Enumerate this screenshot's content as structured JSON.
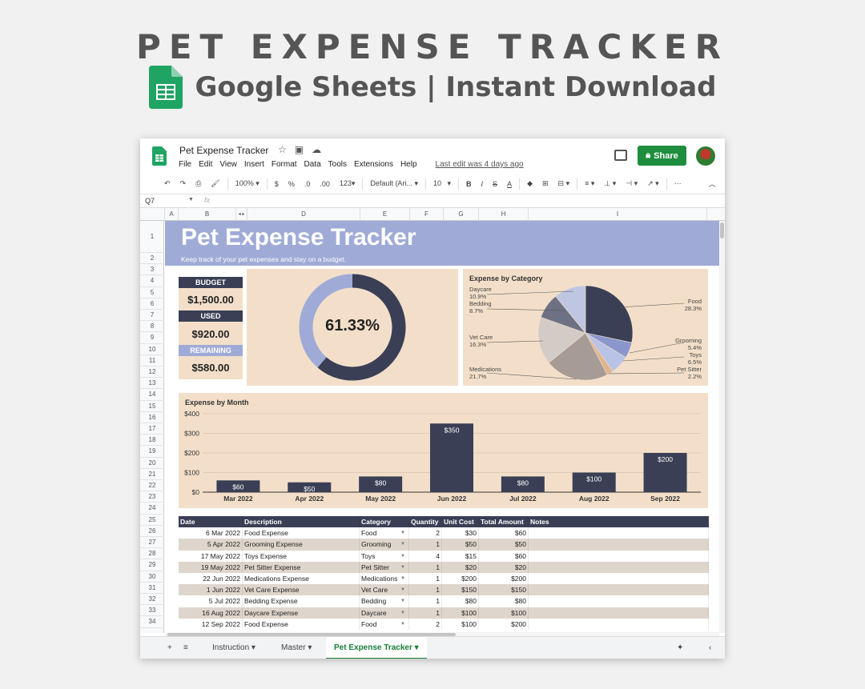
{
  "promo": {
    "title": "PET EXPENSE TRACKER",
    "subtitle": "Google Sheets | Instant Download",
    "logo_icon": "google-sheets-icon"
  },
  "window": {
    "doc_title": "Pet Expense Tracker",
    "menu": [
      "File",
      "Edit",
      "View",
      "Insert",
      "Format",
      "Data",
      "Tools",
      "Extensions",
      "Help"
    ],
    "last_edit": "Last edit was 4 days ago",
    "share_label": "Share",
    "name_box": "Q7",
    "fx": "fx"
  },
  "toolbar": {
    "zoom": "100%",
    "currency": "$",
    "percent": "%",
    "dec_less": ".0",
    "dec_more": ".00",
    "format_more": "123",
    "font": "Default (Ari...",
    "font_size": "10",
    "bold": "B",
    "italic": "I",
    "strike": "S",
    "text_color": "A",
    "more": "⋯"
  },
  "columns": [
    "A",
    "B",
    "◂ ▸",
    "D",
    "E",
    "F",
    "G",
    "H",
    "I"
  ],
  "rows": [
    "1",
    "2",
    "3",
    "4",
    "5",
    "6",
    "7",
    "8",
    "9",
    "10",
    "11",
    "12",
    "13",
    "14",
    "15",
    "16",
    "17",
    "18",
    "19",
    "20",
    "21",
    "22",
    "23",
    "24",
    "25",
    "26",
    "27",
    "28",
    "29",
    "30",
    "31",
    "32",
    "33",
    "34"
  ],
  "banner": {
    "title": "Pet Expense Tracker",
    "subtitle": "Keep track of your pet expenses and stay on a budget."
  },
  "budget": {
    "budget_label": "BUDGET",
    "budget_value": "$1,500.00",
    "used_label": "USED",
    "used_value": "$920.00",
    "remaining_label": "REMAINING",
    "remaining_value": "$580.00"
  },
  "donut": {
    "percent_label": "61.33%",
    "fraction": 0.6133
  },
  "colors": {
    "navy": "#3a3f55",
    "periwinkle": "#9fabd6",
    "panel": "#f3dfc9",
    "alt_row": "#ded6cc",
    "share_green": "#1e8e3e"
  },
  "chart_data": [
    {
      "type": "pie",
      "title": "Expense by Category",
      "slices": [
        {
          "name": "Food",
          "value": 28.3,
          "label": "28.3%",
          "color": "#3a3f55"
        },
        {
          "name": "Grooming",
          "value": 5.4,
          "label": "5.4%",
          "color": "#8a96cc"
        },
        {
          "name": "Toys",
          "value": 6.5,
          "label": "6.5%",
          "color": "#b9c3e6"
        },
        {
          "name": "Pet Sitter",
          "value": 2.2,
          "label": "2.2%",
          "color": "#e0b48e"
        },
        {
          "name": "Medications",
          "value": 21.7,
          "label": "21.7%",
          "color": "#a79b95"
        },
        {
          "name": "Vet Care",
          "value": 16.3,
          "label": "16.3%",
          "color": "#d3ccc6"
        },
        {
          "name": "Bedding",
          "value": 8.7,
          "label": "8.7%",
          "color": "#6d7183"
        },
        {
          "name": "Daycare",
          "value": 10.9,
          "label": "10.9%",
          "color": "#bfc6e2"
        }
      ]
    },
    {
      "type": "bar",
      "title": "Expense by Month",
      "categories": [
        "Mar 2022",
        "Apr 2022",
        "May 2022",
        "Jun 2022",
        "Jul 2022",
        "Aug 2022",
        "Sep 2022"
      ],
      "values": [
        60,
        50,
        80,
        350,
        80,
        100,
        200
      ],
      "value_labels": [
        "$60",
        "$50",
        "$80",
        "$350",
        "$80",
        "$100",
        "$200"
      ],
      "y_ticks": [
        "$0",
        "$100",
        "$200",
        "$300",
        "$400"
      ],
      "ylim": [
        0,
        400
      ],
      "grid": true
    }
  ],
  "table": {
    "headers": [
      "Date",
      "Description",
      "Category",
      "Quantity",
      "Unit Cost",
      "Total Amount",
      "Notes"
    ],
    "rows": [
      [
        "6 Mar 2022",
        "Food Expense",
        "Food",
        "2",
        "$30",
        "$60"
      ],
      [
        "5 Apr 2022",
        "Grooming Expense",
        "Grooming",
        "1",
        "$50",
        "$50"
      ],
      [
        "17 May 2022",
        "Toys Expense",
        "Toys",
        "4",
        "$15",
        "$60"
      ],
      [
        "19 May 2022",
        "Pet Sitter Expense",
        "Pet Sitter",
        "1",
        "$20",
        "$20"
      ],
      [
        "22 Jun 2022",
        "Medications Expense",
        "Medications",
        "1",
        "$200",
        "$200"
      ],
      [
        "1 Jun 2022",
        "Vet Care Expense",
        "Vet Care",
        "1",
        "$150",
        "$150"
      ],
      [
        "5 Jul 2022",
        "Bedding Expense",
        "Bedding",
        "1",
        "$80",
        "$80"
      ],
      [
        "16 Aug 2022",
        "Daycare Expense",
        "Daycare",
        "1",
        "$100",
        "$100"
      ],
      [
        "12 Sep 2022",
        "Food Expense",
        "Food",
        "2",
        "$100",
        "$200"
      ]
    ]
  },
  "tabs": {
    "add": "+",
    "list": "≡",
    "items": [
      "Instruction",
      "Master",
      "Pet Expense Tracker"
    ],
    "active": "Pet Expense Tracker",
    "explore": "✦",
    "collapse": "‹"
  }
}
